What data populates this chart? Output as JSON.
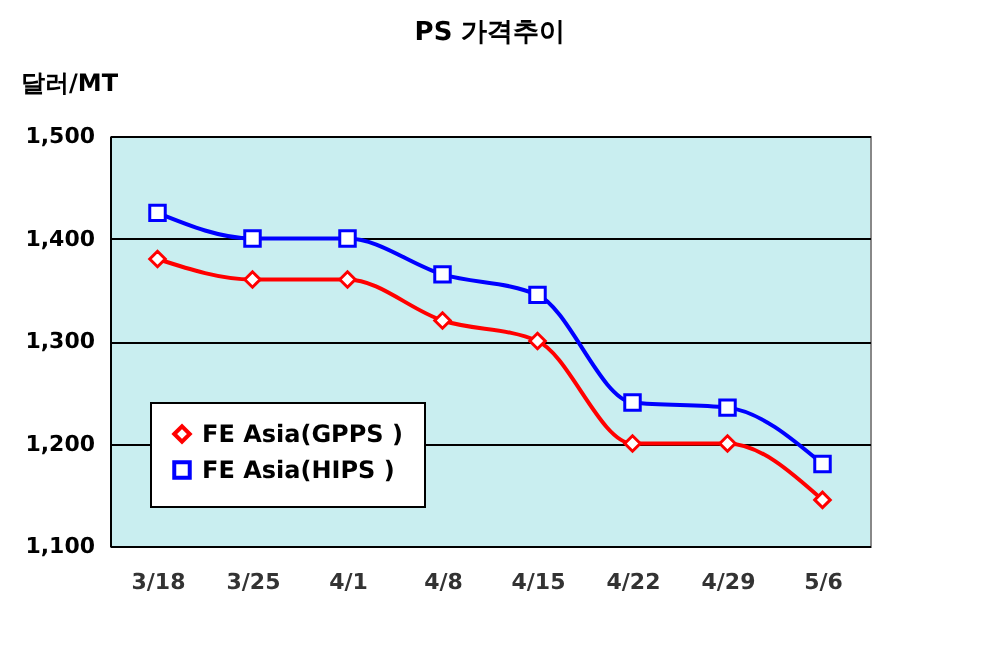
{
  "chart_data": {
    "type": "line",
    "title": "PS 가격추이",
    "ylabel": "달러/MT",
    "categories": [
      "3/18",
      "3/25",
      "4/1",
      "4/8",
      "4/15",
      "4/22",
      "4/29",
      "5/6"
    ],
    "series": [
      {
        "name": "FE Asia(GPPS )",
        "color": "#ff0000",
        "marker": "diamond",
        "values": [
          1380,
          1360,
          1360,
          1320,
          1300,
          1200,
          1200,
          1145
        ]
      },
      {
        "name": "FE Asia(HIPS )",
        "color": "#0000ff",
        "marker": "square",
        "values": [
          1425,
          1400,
          1400,
          1365,
          1345,
          1240,
          1235,
          1180
        ]
      }
    ],
    "ylim": [
      1100,
      1500
    ],
    "yticks": [
      {
        "value": 1100,
        "label": "1,100"
      },
      {
        "value": 1200,
        "label": "1,200"
      },
      {
        "value": 1300,
        "label": "1,300"
      },
      {
        "value": 1400,
        "label": "1,400"
      },
      {
        "value": 1500,
        "label": "1,500"
      }
    ],
    "grid": "y",
    "legend": "bottom left",
    "line_style": "solid"
  }
}
